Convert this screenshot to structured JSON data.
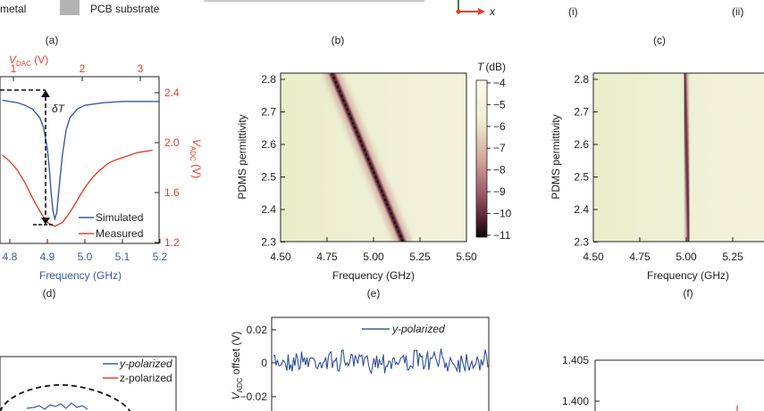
{
  "legend_top": {
    "metal": "metal",
    "substrate": "PCB substrate"
  },
  "panel_labels": {
    "a": "(a)",
    "b": "(b)",
    "c": "(c)",
    "d": "(d)",
    "e": "(e)",
    "f": "(f)",
    "c_i": "(i)",
    "c_ii": "(ii)"
  },
  "axis_x_label": "x",
  "colors": {
    "blue": "#3b5ba8",
    "red": "#e8402a",
    "grid": "#222222"
  },
  "chart_data": [
    {
      "type": "line",
      "panel": "d",
      "xlabel": "Frequency (GHz)",
      "x_ticks": [
        "4.8",
        "4.9",
        "5.0",
        "5.1",
        "5.2"
      ],
      "top_label_prefix": "V",
      "top_label_sub": "DAC",
      "top_label_suffix": " (V)",
      "top_ticks": [
        "1",
        "2",
        "3"
      ],
      "right_label_prefix": "V",
      "right_label_sub": "ADC",
      "right_label_suffix": " (V)",
      "right_ticks": [
        "2.4",
        "2.0",
        "1.6",
        "1.2"
      ],
      "annotation": "δT",
      "series": [
        {
          "name": "Simulated",
          "color": "#3b5ba8",
          "x": [
            4.78,
            4.8,
            4.82,
            4.84,
            4.86,
            4.88,
            4.89,
            4.9,
            4.905,
            4.91,
            4.915,
            4.92,
            4.925,
            4.93,
            4.94,
            4.95,
            4.96,
            4.98,
            5.0,
            5.05,
            5.1,
            5.15,
            5.2
          ],
          "y": [
            2.34,
            2.33,
            2.32,
            2.3,
            2.27,
            2.2,
            2.12,
            1.95,
            1.8,
            1.6,
            1.45,
            1.39,
            1.44,
            1.6,
            1.9,
            2.1,
            2.2,
            2.27,
            2.3,
            2.32,
            2.33,
            2.33,
            2.33
          ]
        },
        {
          "name": "Measured",
          "color": "#e8402a",
          "x": [
            4.78,
            4.8,
            4.82,
            4.84,
            4.86,
            4.88,
            4.9,
            4.92,
            4.94,
            4.96,
            4.98,
            5.0,
            5.02,
            5.04,
            5.06,
            5.08,
            5.1,
            5.12,
            5.14,
            5.16,
            5.18
          ],
          "y": [
            1.9,
            1.85,
            1.78,
            1.68,
            1.56,
            1.45,
            1.36,
            1.33,
            1.36,
            1.44,
            1.54,
            1.64,
            1.72,
            1.78,
            1.83,
            1.86,
            1.88,
            1.9,
            1.92,
            1.93,
            1.94
          ]
        }
      ]
    },
    {
      "type": "heatmap",
      "panel": "e",
      "xlabel": "Frequency (GHz)",
      "ylabel": "PDMS permittivity",
      "x_ticks": [
        "4.50",
        "4.75",
        "5.00",
        "5.25",
        "5.50"
      ],
      "y_ticks": [
        "2.8",
        "2.7",
        "2.6",
        "2.5",
        "2.4",
        "2.3"
      ],
      "colorbar_label": "T (dB)",
      "colorbar_ticks": [
        "−4",
        "−5",
        "−6",
        "−7",
        "−8",
        "−9",
        "−10",
        "−11"
      ],
      "resonance": {
        "freq_at_top": 4.78,
        "freq_at_bottom": 5.15,
        "perm_top": 2.82,
        "perm_bottom": 2.28
      }
    },
    {
      "type": "heatmap",
      "panel": "f",
      "xlabel": "Frequency (GHz)",
      "ylabel": "PDMS permittivity",
      "x_ticks": [
        "4.50",
        "4.75",
        "5.00",
        "5.25"
      ],
      "y_ticks": [
        "2.8",
        "2.7",
        "2.6",
        "2.5",
        "2.4",
        "2.3"
      ],
      "resonance": {
        "freq_at_top": 4.99,
        "freq_at_bottom": 5.01
      }
    },
    {
      "type": "line",
      "panel": "bottom-middle",
      "ylabel_prefix": "V",
      "ylabel_sub": "ADC",
      "ylabel_suffix": " offset (V)",
      "y_ticks": [
        "0.02",
        "0",
        "−0.02"
      ],
      "series": [
        {
          "name": "y-polarized",
          "color": "#3b5ba8"
        }
      ]
    },
    {
      "type": "line",
      "panel": "bottom-left",
      "series": [
        {
          "name": "y-polarized",
          "color": "#3b5ba8"
        },
        {
          "name": "z-polarized",
          "color": "#e8402a"
        }
      ]
    },
    {
      "type": "line",
      "panel": "bottom-right",
      "y_ticks": [
        "1.405",
        "1.400"
      ]
    }
  ]
}
